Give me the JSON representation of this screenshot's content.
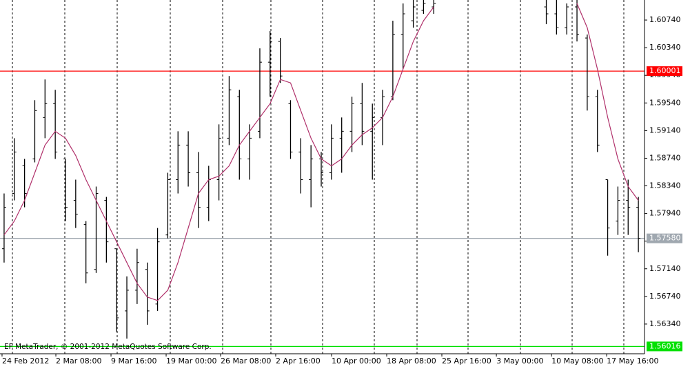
{
  "chart_data": {
    "type": "ohlc",
    "watermark": "EF MetaTrader, © 2001-2012 MetaQuotes Software Corp.",
    "color": "#000000",
    "x": [
      0,
      1,
      2,
      3,
      4,
      5,
      6,
      7,
      8,
      9,
      10,
      11,
      12,
      13,
      14,
      15,
      16,
      17,
      18,
      19,
      20,
      21,
      22,
      23,
      24,
      25,
      26,
      27,
      28,
      29,
      30,
      31,
      32,
      33,
      34,
      35,
      36,
      37,
      38,
      39,
      40,
      41,
      42,
      43,
      44,
      45,
      46,
      47,
      48,
      49,
      50,
      51,
      52,
      53,
      54,
      55,
      56,
      57,
      58,
      59,
      60,
      61,
      62
    ],
    "open": [
      1.5743,
      1.5823,
      1.5863,
      1.5873,
      1.5933,
      1.5953,
      1.5873,
      1.5813,
      1.5778,
      1.5713,
      1.5813,
      1.5743,
      1.5653,
      1.5683,
      1.5713,
      1.5663,
      1.5763,
      1.5843,
      1.5893,
      1.5853,
      1.5803,
      1.5843,
      1.5903,
      1.5963,
      1.5873,
      1.5913,
      1.6013,
      1.6043,
      1.5953,
      1.5883,
      1.5843,
      1.5873,
      1.5853,
      1.5903,
      1.5913,
      1.5953,
      1.5913,
      1.5933,
      1.5963,
      1.6053,
      1.6073,
      1.6088,
      1.6093,
      null,
      null,
      null,
      null,
      null,
      null,
      null,
      null,
      null,
      null,
      1.6093,
      1.6083,
      1.6063,
      1.6093,
      1.6048,
      1.5963,
      1.5843,
      1.5783,
      1.5813,
      1.5803
    ],
    "high": [
      1.5823,
      1.5903,
      1.5873,
      1.5958,
      1.5988,
      1.5973,
      1.5873,
      1.5843,
      1.5783,
      1.5833,
      1.5818,
      1.5743,
      1.5703,
      1.5743,
      1.5723,
      1.5773,
      1.5853,
      1.5913,
      1.5913,
      1.5883,
      1.5863,
      1.5923,
      1.5993,
      1.5973,
      1.5923,
      1.6033,
      1.6058,
      1.6048,
      1.5958,
      1.5903,
      1.5893,
      1.5883,
      1.5923,
      1.5933,
      1.5963,
      1.5983,
      1.5953,
      1.5973,
      1.6073,
      1.6098,
      1.6103,
      1.6103,
      1.6103,
      null,
      null,
      null,
      null,
      null,
      null,
      null,
      null,
      null,
      null,
      1.6103,
      1.6103,
      1.6098,
      1.6103,
      1.6053,
      1.5973,
      1.5843,
      1.5833,
      1.5843,
      1.5818
    ],
    "low": [
      1.5723,
      1.5813,
      1.5803,
      1.5868,
      1.5903,
      1.5873,
      1.5783,
      1.5773,
      1.5693,
      1.5708,
      1.5723,
      1.5623,
      1.5613,
      1.5663,
      1.5633,
      1.5653,
      1.5758,
      1.5823,
      1.5833,
      1.5773,
      1.5783,
      1.5813,
      1.5893,
      1.5843,
      1.5843,
      1.5903,
      1.5963,
      1.5983,
      1.5873,
      1.5823,
      1.5803,
      1.5833,
      1.5843,
      1.5853,
      1.5883,
      1.5893,
      1.5843,
      1.5893,
      1.5958,
      1.6003,
      1.6063,
      1.6083,
      1.6083,
      null,
      null,
      null,
      null,
      null,
      null,
      null,
      null,
      null,
      null,
      1.6068,
      1.6053,
      1.6053,
      1.6043,
      1.5943,
      1.5883,
      1.5733,
      1.5763,
      1.5763,
      1.5738
    ],
    "close": [
      1.5803,
      1.5883,
      1.5823,
      1.5943,
      1.5953,
      1.5883,
      1.5803,
      1.5793,
      1.5708,
      1.5823,
      1.5753,
      1.5643,
      1.5683,
      1.5723,
      1.5653,
      1.5753,
      1.5843,
      1.5893,
      1.5853,
      1.5803,
      1.5843,
      1.5903,
      1.5973,
      1.5873,
      1.5903,
      1.6013,
      1.6043,
      1.5993,
      1.5883,
      1.5843,
      1.5873,
      1.5853,
      1.5903,
      1.5913,
      1.5953,
      1.5913,
      1.5933,
      1.5963,
      1.6053,
      1.6083,
      1.6093,
      1.6098,
      1.6098,
      null,
      null,
      null,
      null,
      null,
      null,
      null,
      null,
      null,
      null,
      1.6083,
      1.6063,
      1.6093,
      1.6053,
      1.5963,
      1.5893,
      1.5773,
      1.5813,
      1.5803,
      1.5758
    ],
    "overlay": {
      "type": "line",
      "color": "#b0306a",
      "values": [
        1.5763,
        1.5783,
        1.5813,
        1.5853,
        1.5893,
        1.5913,
        1.5903,
        1.5878,
        1.5843,
        1.5813,
        1.5783,
        1.5753,
        1.5723,
        1.5693,
        1.5673,
        1.5668,
        1.5683,
        1.5723,
        1.5773,
        1.5823,
        1.5843,
        1.5848,
        1.5863,
        1.5893,
        1.5913,
        1.5933,
        1.5953,
        1.5988,
        1.5983,
        1.5943,
        1.5903,
        1.5873,
        1.5863,
        1.5873,
        1.5893,
        1.5908,
        1.5918,
        1.5933,
        1.5963,
        1.6003,
        1.6043,
        1.6073,
        1.6093,
        null,
        null,
        null,
        null,
        null,
        null,
        null,
        null,
        null,
        null,
        null,
        null,
        null,
        1.6098,
        1.6063,
        1.6003,
        1.5933,
        1.5873,
        1.5833,
        1.5813
      ]
    },
    "levels": [
      {
        "value": 1.60001,
        "label": "1.60001",
        "color": "#ff0000"
      },
      {
        "value": 1.5758,
        "label": "1.57580",
        "color": "#a0a8b0"
      },
      {
        "value": 1.56016,
        "label": "1.56016",
        "color": "#00e000"
      }
    ],
    "xlim": [
      -0.4,
      62.6
    ],
    "ylim": [
      1.5591,
      1.6103
    ],
    "xticks": [
      {
        "value": -0.2,
        "label": "24 Feb 2012"
      },
      {
        "value": 5.06,
        "label": "2 Mar 08:00"
      },
      {
        "value": 10.45,
        "label": "9 Mar 16:00"
      },
      {
        "value": 15.84,
        "label": "19 Mar 00:00"
      },
      {
        "value": 21.16,
        "label": "26 Mar 08:00"
      },
      {
        "value": 26.55,
        "label": "2 Apr 16:00"
      },
      {
        "value": 32.01,
        "label": "10 Apr 00:00"
      },
      {
        "value": 37.4,
        "label": "18 Apr 08:00"
      },
      {
        "value": 42.79,
        "label": "25 Apr 16:00"
      },
      {
        "value": 48.12,
        "label": "3 May 00:00"
      },
      {
        "value": 53.51,
        "label": "10 May 08:00"
      },
      {
        "value": 58.9,
        "label": "17 May 16:00"
      }
    ],
    "yticks": [
      {
        "value": 1.6074,
        "label": "1.60740"
      },
      {
        "value": 1.6034,
        "label": "1.60340"
      },
      {
        "value": 1.5994,
        "label": "1.59940"
      },
      {
        "value": 1.5954,
        "label": "1.59540"
      },
      {
        "value": 1.5914,
        "label": "1.59140"
      },
      {
        "value": 1.5874,
        "label": "1.58740"
      },
      {
        "value": 1.5834,
        "label": "1.58340"
      },
      {
        "value": 1.5794,
        "label": "1.57940"
      },
      {
        "value": 1.5754,
        "label": "1.57540"
      },
      {
        "value": 1.5714,
        "label": "1.57140"
      },
      {
        "value": 1.5674,
        "label": "1.56740"
      },
      {
        "value": 1.5634,
        "label": "1.56340"
      }
    ]
  }
}
